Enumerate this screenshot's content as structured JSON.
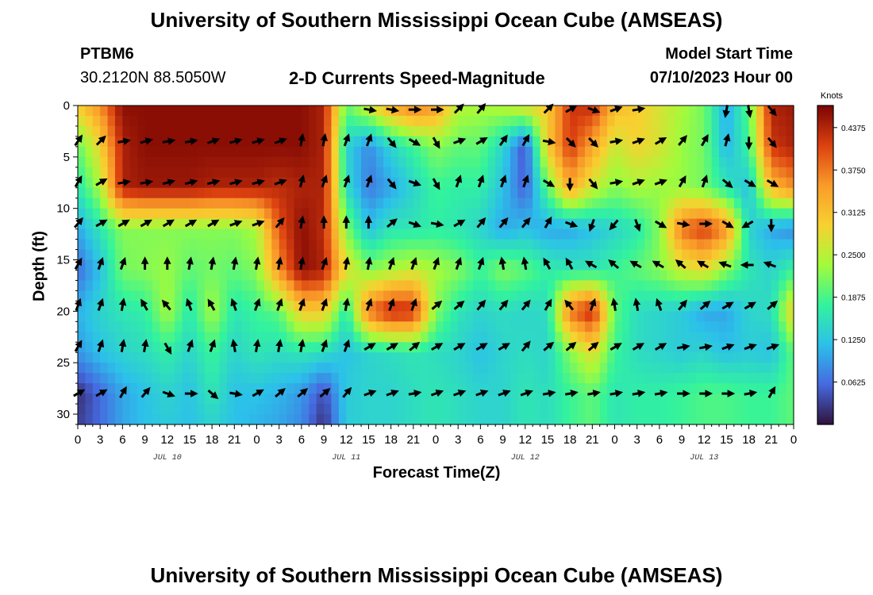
{
  "chart_data": {
    "type": "heatmap",
    "title": "University of Southern Mississippi Ocean Cube (AMSEAS)",
    "subtitle": "2-D Currents Speed-Magnitude",
    "station_id": "PTBM6",
    "station_coords": "30.2120N  88.5050W",
    "model_start_label": "Model Start Time",
    "model_start_value": "07/10/2023 Hour 00",
    "xlabel": "Forecast Time(Z)",
    "ylabel": "Depth (ft)",
    "x_tick_labels": [
      "0",
      "3",
      "6",
      "9",
      "12",
      "15",
      "18",
      "21",
      "0",
      "3",
      "6",
      "9",
      "12",
      "15",
      "18",
      "21",
      "0",
      "3",
      "6",
      "9",
      "12",
      "15",
      "18",
      "21",
      "0",
      "3",
      "6",
      "9",
      "12",
      "15",
      "18",
      "21",
      "0"
    ],
    "x_day_labels": [
      {
        "label": "JUL 10",
        "hour": 12
      },
      {
        "label": "JUL 11",
        "hour": 36
      },
      {
        "label": "JUL 12",
        "hour": 60
      },
      {
        "label": "JUL 13",
        "hour": 84
      }
    ],
    "xlim": [
      0,
      96
    ],
    "y_ticks": [
      0,
      5,
      10,
      15,
      20,
      25,
      30
    ],
    "ylim": [
      0,
      31
    ],
    "colorbar": {
      "unit": "Knots",
      "ticks": [
        "0.4375",
        "0.3750",
        "0.3125",
        "0.2500",
        "0.1875",
        "0.1250",
        "0.0625"
      ],
      "range": [
        0.0,
        0.47
      ],
      "colors": [
        "#30123b",
        "#4669e0",
        "#2cc0ea",
        "#32f39d",
        "#a2fb3b",
        "#f8d130",
        "#f99b2a",
        "#dc4110",
        "#7a0403"
      ]
    },
    "speed_grid_hours": [
      0,
      3,
      6,
      9,
      12,
      15,
      18,
      21,
      24,
      27,
      30,
      33,
      36,
      39,
      42,
      45,
      48,
      51,
      54,
      57,
      60,
      63,
      66,
      69,
      72,
      75,
      78,
      81,
      84,
      87,
      90,
      93,
      96
    ],
    "speed_grid_depths": [
      0,
      4,
      8,
      12,
      16,
      20,
      24,
      28,
      31
    ],
    "speed_knots": [
      [
        0.3,
        0.36,
        0.46,
        0.46,
        0.46,
        0.46,
        0.46,
        0.46,
        0.46,
        0.46,
        0.46,
        0.44,
        0.2,
        0.27,
        0.34,
        0.38,
        0.35,
        0.25,
        0.24,
        0.25,
        0.28,
        0.3,
        0.42,
        0.43,
        0.32,
        0.3,
        0.27,
        0.24,
        0.21,
        0.1,
        0.2,
        0.44,
        0.45
      ],
      [
        0.2,
        0.29,
        0.44,
        0.46,
        0.46,
        0.46,
        0.46,
        0.46,
        0.46,
        0.46,
        0.46,
        0.44,
        0.14,
        0.08,
        0.14,
        0.18,
        0.22,
        0.2,
        0.2,
        0.14,
        0.04,
        0.3,
        0.42,
        0.34,
        0.26,
        0.29,
        0.27,
        0.23,
        0.21,
        0.11,
        0.18,
        0.42,
        0.44
      ],
      [
        0.16,
        0.24,
        0.44,
        0.45,
        0.45,
        0.45,
        0.44,
        0.44,
        0.44,
        0.43,
        0.44,
        0.44,
        0.15,
        0.07,
        0.1,
        0.14,
        0.18,
        0.17,
        0.17,
        0.12,
        0.05,
        0.2,
        0.34,
        0.26,
        0.22,
        0.24,
        0.23,
        0.23,
        0.21,
        0.16,
        0.12,
        0.32,
        0.36
      ],
      [
        0.1,
        0.16,
        0.22,
        0.22,
        0.22,
        0.22,
        0.22,
        0.22,
        0.24,
        0.4,
        0.46,
        0.43,
        0.22,
        0.12,
        0.16,
        0.16,
        0.17,
        0.16,
        0.14,
        0.1,
        0.12,
        0.1,
        0.1,
        0.12,
        0.14,
        0.16,
        0.22,
        0.38,
        0.42,
        0.36,
        0.14,
        0.1,
        0.08
      ],
      [
        0.06,
        0.12,
        0.21,
        0.22,
        0.23,
        0.2,
        0.21,
        0.2,
        0.22,
        0.36,
        0.46,
        0.44,
        0.28,
        0.22,
        0.24,
        0.26,
        0.24,
        0.22,
        0.18,
        0.22,
        0.2,
        0.17,
        0.16,
        0.16,
        0.18,
        0.2,
        0.22,
        0.26,
        0.28,
        0.22,
        0.16,
        0.14,
        0.18
      ],
      [
        0.11,
        0.14,
        0.16,
        0.17,
        0.24,
        0.16,
        0.24,
        0.16,
        0.18,
        0.2,
        0.3,
        0.3,
        0.16,
        0.38,
        0.44,
        0.43,
        0.22,
        0.16,
        0.14,
        0.15,
        0.14,
        0.15,
        0.38,
        0.44,
        0.2,
        0.15,
        0.14,
        0.13,
        0.1,
        0.1,
        0.14,
        0.15,
        0.3
      ],
      [
        0.09,
        0.12,
        0.14,
        0.15,
        0.17,
        0.14,
        0.18,
        0.14,
        0.16,
        0.15,
        0.16,
        0.15,
        0.12,
        0.14,
        0.15,
        0.16,
        0.15,
        0.14,
        0.12,
        0.14,
        0.15,
        0.14,
        0.22,
        0.28,
        0.18,
        0.15,
        0.14,
        0.13,
        0.14,
        0.12,
        0.13,
        0.12,
        0.2
      ],
      [
        0.02,
        0.06,
        0.1,
        0.12,
        0.14,
        0.12,
        0.16,
        0.12,
        0.12,
        0.11,
        0.09,
        0.04,
        0.13,
        0.14,
        0.14,
        0.15,
        0.16,
        0.15,
        0.14,
        0.14,
        0.16,
        0.15,
        0.18,
        0.2,
        0.16,
        0.17,
        0.17,
        0.18,
        0.19,
        0.19,
        0.18,
        0.18,
        0.2
      ],
      [
        0.03,
        0.06,
        0.1,
        0.12,
        0.13,
        0.12,
        0.14,
        0.12,
        0.11,
        0.1,
        0.08,
        0.02,
        0.13,
        0.14,
        0.14,
        0.15,
        0.16,
        0.15,
        0.14,
        0.14,
        0.16,
        0.15,
        0.18,
        0.2,
        0.16,
        0.17,
        0.17,
        0.18,
        0.19,
        0.19,
        0.18,
        0.18,
        0.2
      ]
    ],
    "vector_depths": [
      3.5,
      7.5,
      11.5,
      15.5,
      19.5,
      23.5,
      28
    ],
    "vector_hours": [
      0,
      3,
      6,
      9,
      12,
      15,
      18,
      21,
      24,
      27,
      30,
      33,
      36,
      39,
      42,
      45,
      48,
      51,
      54,
      57,
      60,
      63,
      66,
      69,
      72,
      75,
      78,
      81,
      84,
      87,
      90,
      93
    ],
    "surface_vector_hours": [
      39,
      42,
      45,
      48,
      51,
      54,
      63,
      66,
      69,
      72,
      75,
      87,
      90,
      93
    ],
    "surface_vector_dirs": [
      100,
      100,
      90,
      90,
      45,
      40,
      45,
      60,
      110,
      70,
      80,
      190,
      170,
      140
    ],
    "vector_dirs_deg": [
      [
        35,
        45,
        80,
        75,
        80,
        80,
        70,
        75,
        75,
        70,
        10,
        10,
        20,
        20,
        140,
        120,
        150,
        70,
        60,
        35,
        30,
        100,
        135,
        135,
        80,
        70,
        60,
        40,
        30,
        15,
        180,
        140
      ],
      [
        30,
        60,
        80,
        80,
        75,
        75,
        75,
        75,
        75,
        70,
        15,
        20,
        20,
        20,
        140,
        110,
        150,
        20,
        20,
        20,
        20,
        120,
        180,
        140,
        80,
        70,
        70,
        30,
        20,
        130,
        120,
        120
      ],
      [
        40,
        60,
        60,
        60,
        60,
        60,
        60,
        70,
        70,
        40,
        10,
        0,
        0,
        0,
        50,
        110,
        100,
        60,
        40,
        40,
        40,
        30,
        110,
        200,
        220,
        160,
        120,
        100,
        90,
        120,
        240,
        180
      ],
      [
        30,
        20,
        20,
        0,
        0,
        10,
        10,
        10,
        10,
        10,
        10,
        20,
        10,
        10,
        20,
        20,
        20,
        20,
        20,
        350,
        350,
        330,
        330,
        300,
        310,
        300,
        300,
        310,
        300,
        290,
        270,
        290
      ],
      [
        20,
        20,
        10,
        330,
        320,
        340,
        330,
        340,
        20,
        20,
        20,
        20,
        10,
        20,
        20,
        20,
        50,
        50,
        40,
        40,
        40,
        30,
        320,
        20,
        350,
        350,
        340,
        40,
        50,
        60,
        60,
        50
      ],
      [
        30,
        20,
        10,
        10,
        150,
        20,
        20,
        350,
        10,
        10,
        10,
        20,
        20,
        60,
        60,
        50,
        60,
        60,
        60,
        60,
        40,
        50,
        50,
        50,
        60,
        60,
        60,
        80,
        80,
        70,
        70,
        70
      ],
      [
        60,
        60,
        30,
        40,
        110,
        90,
        130,
        100,
        60,
        50,
        50,
        50,
        40,
        70,
        70,
        80,
        70,
        70,
        70,
        70,
        70,
        80,
        80,
        80,
        80,
        80,
        80,
        90,
        90,
        90,
        80,
        30
      ]
    ]
  }
}
